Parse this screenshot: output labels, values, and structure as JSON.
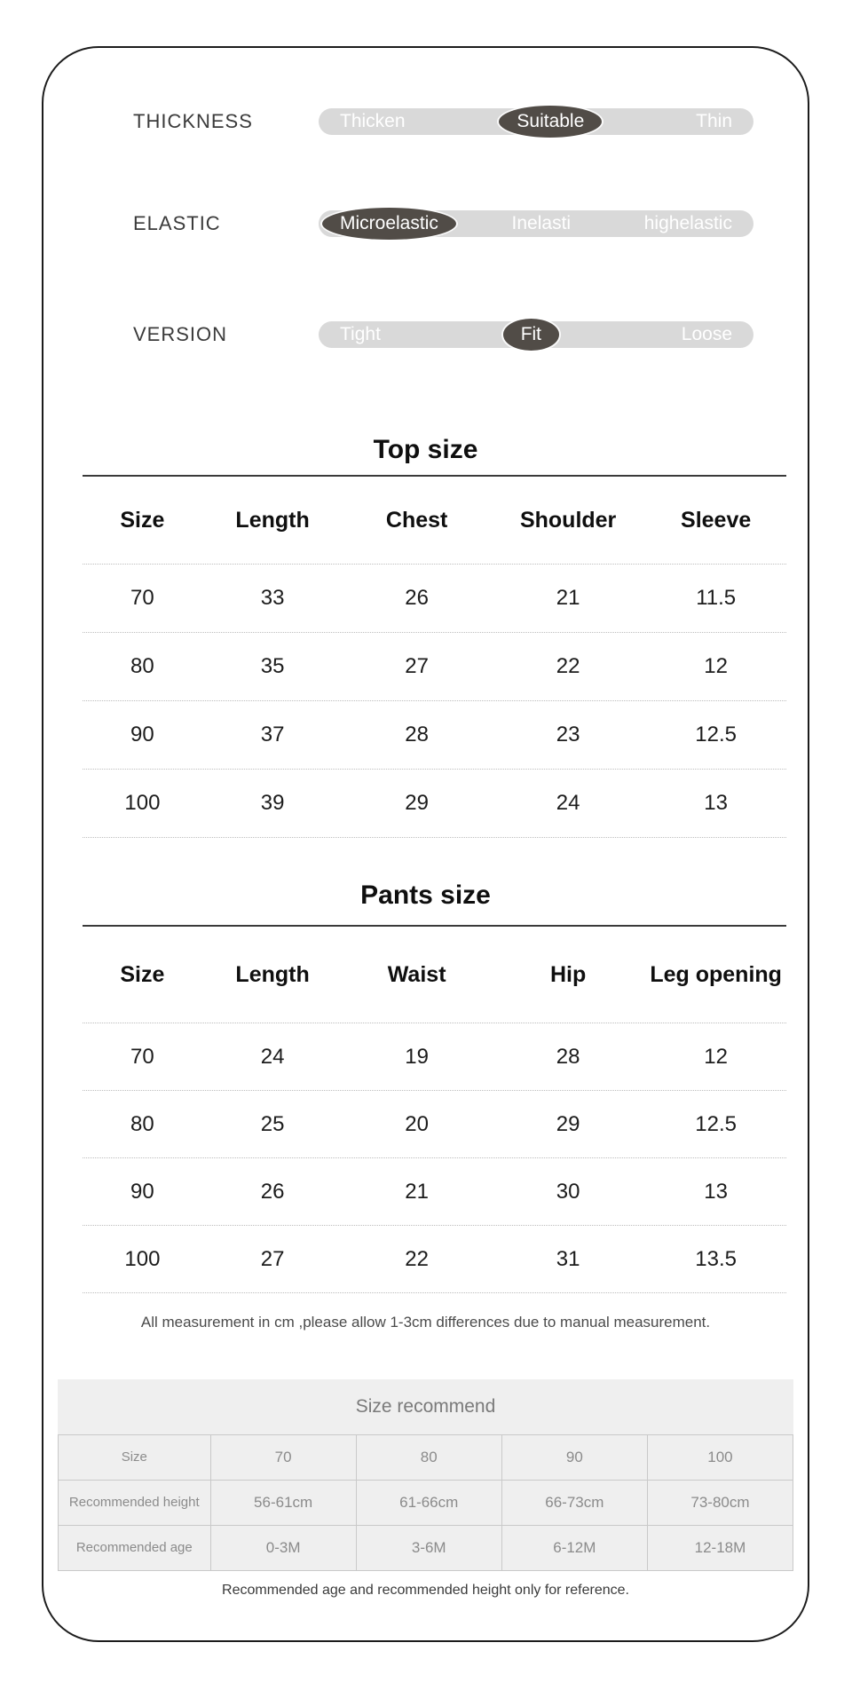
{
  "attributes": {
    "rows": [
      {
        "label": "THICKNESS",
        "options": [
          "Thicken",
          "Suitable",
          "Thin"
        ],
        "selected": "Suitable"
      },
      {
        "label": "ELASTIC",
        "options": [
          "Microelastic",
          "Inelasti",
          "highelastic"
        ],
        "selected": "Microelastic"
      },
      {
        "label": "VERSION",
        "options": [
          "Tight",
          "Fit",
          "Loose"
        ],
        "selected": "Fit"
      }
    ]
  },
  "top_size": {
    "title": "Top size",
    "columns": [
      "Size",
      "Length",
      "Chest",
      "Shoulder",
      "Sleeve"
    ],
    "rows": [
      [
        "70",
        "33",
        "26",
        "21",
        "11.5"
      ],
      [
        "80",
        "35",
        "27",
        "22",
        "12"
      ],
      [
        "90",
        "37",
        "28",
        "23",
        "12.5"
      ],
      [
        "100",
        "39",
        "29",
        "24",
        "13"
      ]
    ]
  },
  "pants_size": {
    "title": "Pants size",
    "columns": [
      "Size",
      "Length",
      "Waist",
      "Hip",
      "Leg opening"
    ],
    "rows": [
      [
        "70",
        "24",
        "19",
        "28",
        "12"
      ],
      [
        "80",
        "25",
        "20",
        "29",
        "12.5"
      ],
      [
        "90",
        "26",
        "21",
        "30",
        "13"
      ],
      [
        "100",
        "27",
        "22",
        "31",
        "13.5"
      ]
    ]
  },
  "measure_note": "All measurement in cm ,please allow 1-3cm differences due to manual measurement.",
  "size_recommend": {
    "title": "Size recommend",
    "row_labels": [
      "Size",
      "Recommended height",
      "Recommended age"
    ],
    "rows": [
      [
        "70",
        "80",
        "90",
        "100"
      ],
      [
        "56-61cm",
        "61-66cm",
        "66-73cm",
        "73-80cm"
      ],
      [
        "0-3M",
        "3-6M",
        "6-12M",
        "12-18M"
      ]
    ]
  },
  "footer_note": "Recommended age and recommended height only for reference.",
  "colors": {
    "selected_pill": "#514c47",
    "bar_background": "#d9d9d9",
    "option_text": "#ffffff",
    "recommend_background": "#efefef",
    "recommend_text": "#8b8b8b",
    "card_border": "#1c1c1c"
  }
}
